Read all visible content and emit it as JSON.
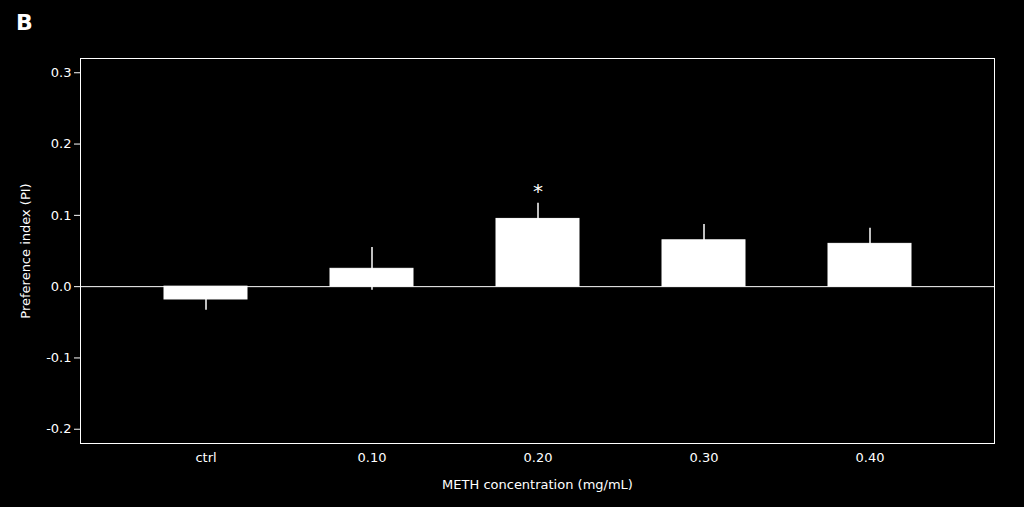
{
  "chart_data": {
    "type": "bar",
    "title": "B",
    "categories": [
      "ctrl",
      "0.10",
      "0.20",
      "0.30",
      "0.40"
    ],
    "values": [
      -0.018,
      0.025,
      0.095,
      0.065,
      0.06
    ],
    "errors": [
      0.015,
      0.03,
      0.022,
      0.022,
      0.022
    ],
    "color": "#ffffff",
    "xlabel": "METH concentration (mg/mL)",
    "ylabel": "Preference index (PI)",
    "ylim": [
      -0.22,
      0.32
    ],
    "yticks": [
      -0.2,
      -0.1,
      {
        "value": 0.0,
        "label": "0.0"
      },
      0.1,
      0.2,
      0.3
    ],
    "annotations": [
      {
        "text": "*",
        "category": "0.20"
      }
    ],
    "grid": false
  }
}
